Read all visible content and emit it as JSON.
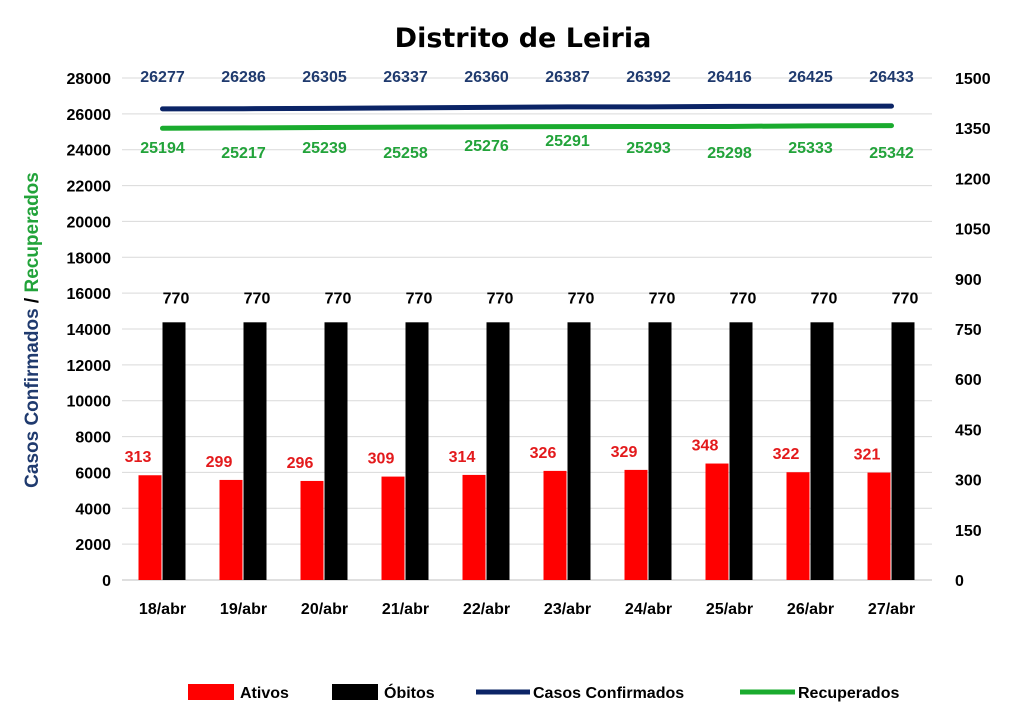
{
  "chart_data": {
    "type": "bar",
    "title": "Distrito de Leiria",
    "categories": [
      "18/abr",
      "19/abr",
      "20/abr",
      "21/abr",
      "22/abr",
      "23/abr",
      "24/abr",
      "25/abr",
      "26/abr",
      "27/abr"
    ],
    "ylabel_left_part1": "Casos Confirmados",
    "ylabel_left_sep": " / ",
    "ylabel_left_part2": "Recuperados",
    "ylim_left": [
      0,
      28000
    ],
    "ylim_right": [
      0,
      1500
    ],
    "left_ticks": [
      0,
      2000,
      4000,
      6000,
      8000,
      10000,
      12000,
      14000,
      16000,
      18000,
      20000,
      22000,
      24000,
      26000,
      28000
    ],
    "right_ticks": [
      0,
      150,
      300,
      450,
      600,
      750,
      900,
      1050,
      1200,
      1350,
      1500
    ],
    "grid": true,
    "legend_position": "bottom",
    "series": [
      {
        "name": "Ativos",
        "kind": "bar",
        "axis": "right",
        "color": "#ff0000",
        "label_color": "#e31a1c",
        "values": [
          313,
          299,
          296,
          309,
          314,
          326,
          329,
          348,
          322,
          321
        ]
      },
      {
        "name": "Óbitos",
        "kind": "bar",
        "axis": "right",
        "color": "#000000",
        "label_color": "#000000",
        "values": [
          770,
          770,
          770,
          770,
          770,
          770,
          770,
          770,
          770,
          770
        ]
      },
      {
        "name": "Casos Confirmados",
        "kind": "line",
        "axis": "left",
        "color": "#0b2466",
        "label_color": "#1f3a6e",
        "values": [
          26277,
          26286,
          26305,
          26337,
          26360,
          26387,
          26392,
          26416,
          26425,
          26433
        ]
      },
      {
        "name": "Recuperados",
        "kind": "line",
        "axis": "left",
        "color": "#1aab2e",
        "label_color": "#22a33a",
        "values": [
          25194,
          25217,
          25239,
          25258,
          25276,
          25291,
          25293,
          25298,
          25333,
          25342
        ]
      }
    ]
  }
}
